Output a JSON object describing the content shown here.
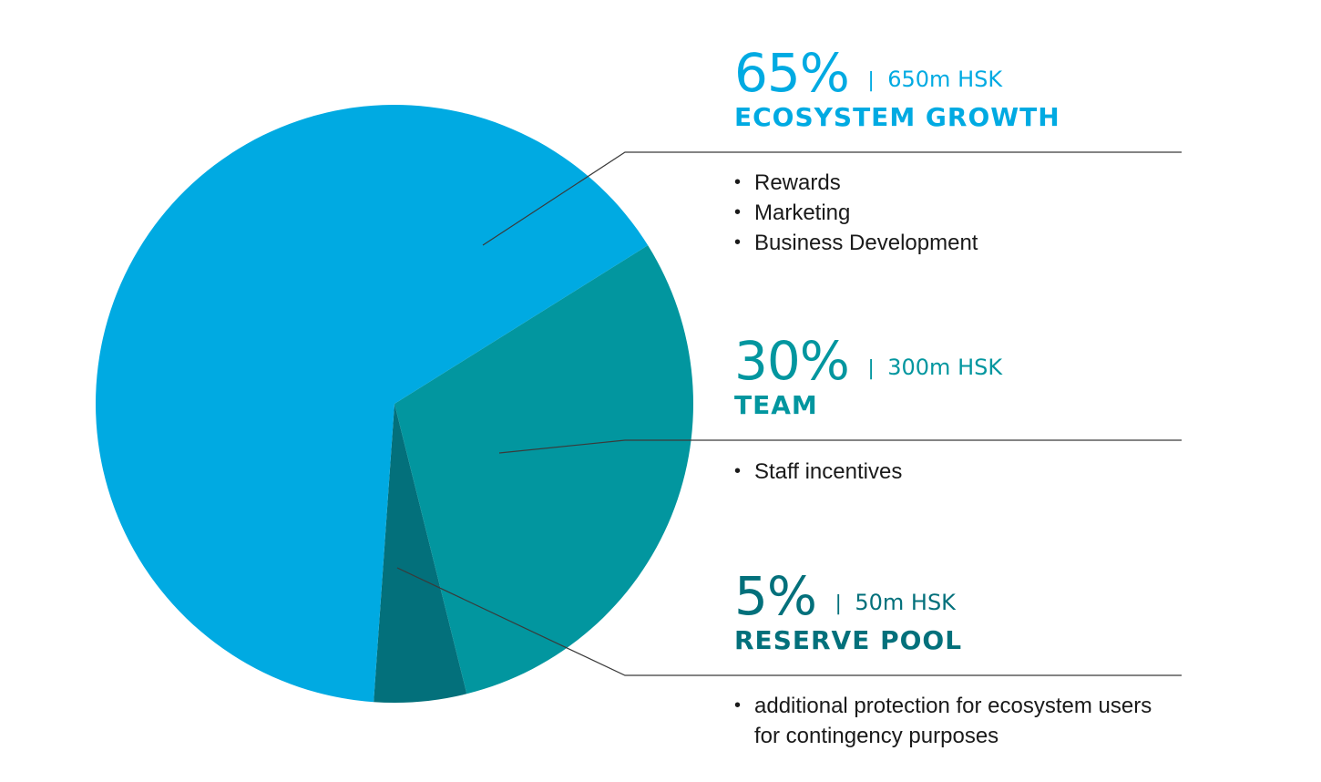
{
  "colors": {
    "ecosystem": "#00aae2",
    "team": "#02969f",
    "reserve": "#03707b",
    "leader": "#3a3a3a",
    "bullet_text": "#1a1a1a"
  },
  "chart_data": {
    "type": "pie",
    "start_angle_deg": 94,
    "direction": "counterclockwise-from-bottom",
    "slices": [
      {
        "key": "ecosystem",
        "percent_label": "65%",
        "amount": "650m HSK",
        "category": "ECOSYSTEM GROWTH",
        "value": 65,
        "color": "#00aae2",
        "bullets": [
          "Rewards",
          "Marketing",
          "Business Development"
        ]
      },
      {
        "key": "team",
        "percent_label": "30%",
        "amount": "300m HSK",
        "category": "TEAM",
        "value": 30,
        "color": "#02969f",
        "bullets": [
          "Staff incentives"
        ]
      },
      {
        "key": "reserve",
        "percent_label": "5%",
        "amount": "50m HSK",
        "category": "RESERVE POOL",
        "value": 5,
        "color": "#03707b",
        "bullets": [
          "additional protection for ecosystem users for contingency purposes"
        ]
      }
    ],
    "separator": "|"
  }
}
